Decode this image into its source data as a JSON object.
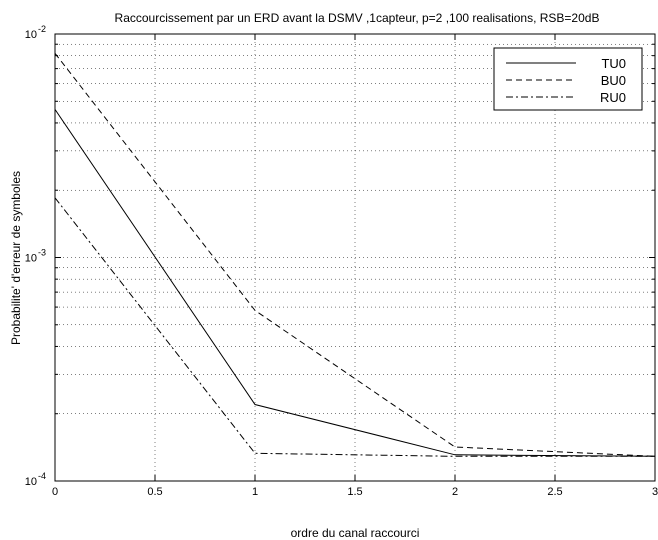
{
  "chart_data": {
    "type": "line",
    "title": "Raccourcissement par un ERD avant la DSMV ,1capteur, p=2 ,100 realisations, RSB=20dB",
    "xlabel": "ordre du canal raccourci",
    "ylabel": "Probabilite' d'erreur de symboles",
    "x": [
      0,
      1,
      2,
      3
    ],
    "xlim": [
      0,
      3
    ],
    "ylim": [
      0.0001,
      0.01
    ],
    "yscale": "log",
    "xticks": [
      0,
      0.5,
      1,
      1.5,
      2,
      2.5,
      3
    ],
    "xtick_labels": [
      "0",
      "0.5",
      "1",
      "1.5",
      "2",
      "2.5",
      "3"
    ],
    "ytick_labels": [
      {
        "value": 0.01,
        "base": "10",
        "exp": "-2"
      },
      {
        "value": 0.001,
        "base": "10",
        "exp": "-3"
      },
      {
        "value": 0.0001,
        "base": "10",
        "exp": "-4"
      }
    ],
    "grid": true,
    "legend_position": "top-right",
    "series": [
      {
        "name": "TU0",
        "style": "solid",
        "values": [
          0.0046,
          0.00022,
          0.000131,
          0.000129
        ]
      },
      {
        "name": "BU0",
        "style": "dashed",
        "values": [
          0.0082,
          0.00058,
          0.000142,
          0.000129
        ]
      },
      {
        "name": "RU0",
        "style": "dashdot",
        "values": [
          0.00185,
          0.000133,
          0.000129,
          0.000129
        ]
      }
    ]
  }
}
